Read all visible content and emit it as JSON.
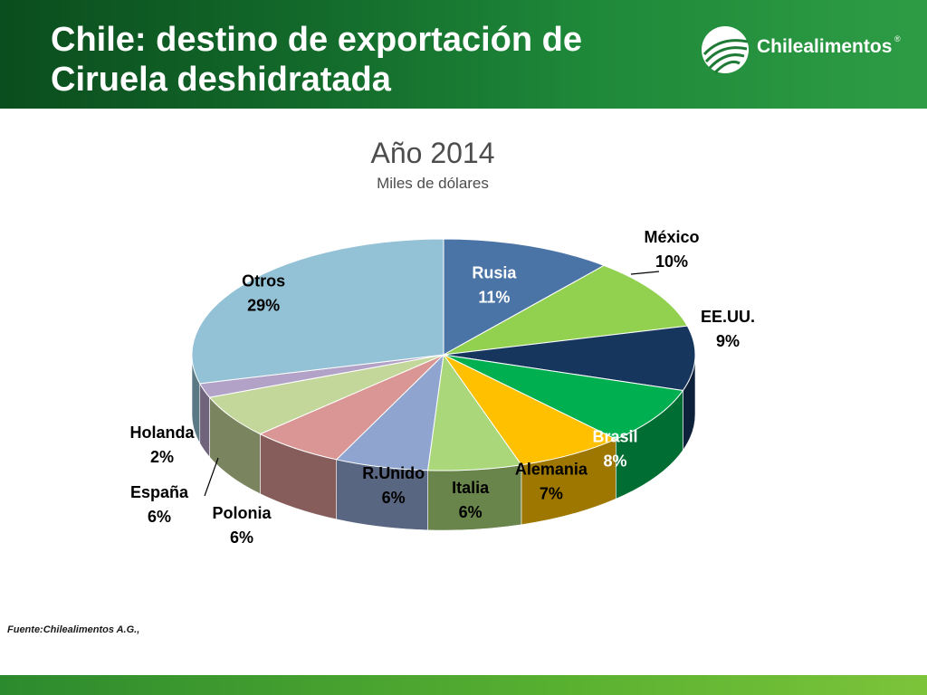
{
  "header": {
    "title": "Chile: destino de exportación de Ciruela deshidratada",
    "logo_text": "Chilealimentos",
    "logo_mark": "®"
  },
  "source": "Fuente:Chilealimentos A.G.,",
  "colors": {
    "header_dark": "#0b4d1e",
    "header_light": "#2e9c45",
    "footer": "#58b030"
  },
  "chart_data": {
    "type": "pie",
    "title": "Año 2014",
    "subtitle": "Miles de dólares",
    "unit": "%",
    "slices": [
      {
        "label": "Rusia",
        "value": 11,
        "color": "#4a73a6",
        "label_color": "#ffffff"
      },
      {
        "label": "México",
        "value": 10,
        "color": "#92d050",
        "label_color": "#000000"
      },
      {
        "label": "EE.UU.",
        "value": 9,
        "color": "#17365d",
        "label_color": "#000000"
      },
      {
        "label": "Brasil",
        "value": 8,
        "color": "#00b050",
        "label_color": "#ffffff"
      },
      {
        "label": "Alemania",
        "value": 7,
        "color": "#ffc000",
        "label_color": "#000000"
      },
      {
        "label": "Italia",
        "value": 6,
        "color": "#a9d77a",
        "label_color": "#000000"
      },
      {
        "label": "R.Unido",
        "value": 6,
        "color": "#8fa5d0",
        "label_color": "#000000"
      },
      {
        "label": "Polonia",
        "value": 6,
        "color": "#d99694",
        "label_color": "#000000"
      },
      {
        "label": "España",
        "value": 6,
        "color": "#c4d79b",
        "label_color": "#000000"
      },
      {
        "label": "Holanda",
        "value": 2,
        "color": "#b3a2c7",
        "label_color": "#000000"
      },
      {
        "label": "Otros",
        "value": 29,
        "color": "#93c2d6",
        "label_color": "#000000"
      }
    ]
  }
}
